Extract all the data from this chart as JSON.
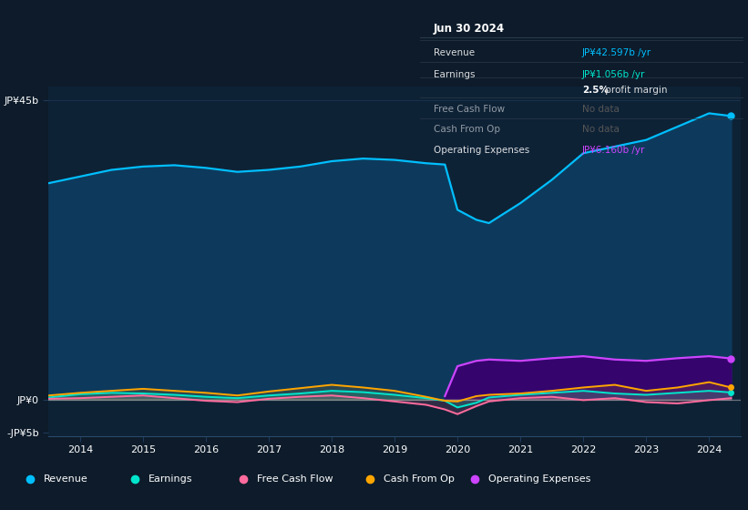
{
  "background_color": "#0d1b2a",
  "plot_bg_color": "#0e2236",
  "years": [
    2013.5,
    2014,
    2014.5,
    2015,
    2015.5,
    2016,
    2016.5,
    2017,
    2017.5,
    2018,
    2018.5,
    2019,
    2019.5,
    2019.8,
    2020,
    2020.3,
    2020.5,
    2021,
    2021.5,
    2022,
    2022.5,
    2023,
    2023.5,
    2024,
    2024.35
  ],
  "revenue": [
    32.5,
    33.5,
    34.5,
    35.0,
    35.2,
    34.8,
    34.2,
    34.5,
    35.0,
    35.8,
    36.2,
    36.0,
    35.5,
    35.3,
    28.5,
    27.0,
    26.5,
    29.5,
    33.0,
    37.0,
    38.0,
    39.0,
    41.0,
    43.0,
    42.6
  ],
  "earnings": [
    0.3,
    0.8,
    1.0,
    0.9,
    0.7,
    0.4,
    0.2,
    0.6,
    0.9,
    1.3,
    1.1,
    0.7,
    0.2,
    -0.2,
    -1.2,
    -0.5,
    0.3,
    0.7,
    1.0,
    1.3,
    0.9,
    0.7,
    1.0,
    1.3,
    1.056
  ],
  "free_cash_flow": [
    0.1,
    0.2,
    0.4,
    0.6,
    0.2,
    -0.2,
    -0.4,
    0.1,
    0.4,
    0.6,
    0.2,
    -0.3,
    -0.8,
    -1.5,
    -2.2,
    -1.0,
    -0.3,
    0.2,
    0.4,
    -0.1,
    0.2,
    -0.4,
    -0.6,
    -0.1,
    0.2
  ],
  "cash_from_op": [
    0.6,
    1.0,
    1.3,
    1.6,
    1.3,
    1.0,
    0.6,
    1.2,
    1.7,
    2.2,
    1.8,
    1.3,
    0.4,
    -0.2,
    -0.3,
    0.5,
    0.7,
    0.9,
    1.3,
    1.8,
    2.2,
    1.3,
    1.8,
    2.6,
    1.8
  ],
  "op_expenses_x": [
    2019.8,
    2020,
    2020.3,
    2020.5,
    2021,
    2021.5,
    2022,
    2022.5,
    2023,
    2023.5,
    2024,
    2024.35
  ],
  "op_expenses": [
    0.5,
    5.0,
    5.8,
    6.0,
    5.8,
    6.2,
    6.5,
    6.0,
    5.8,
    6.2,
    6.5,
    6.16
  ],
  "revenue_color": "#00bfff",
  "earnings_color": "#00e5cc",
  "free_cash_flow_color": "#ff6b9d",
  "cash_from_op_color": "#ffa500",
  "op_expenses_color": "#cc44ff",
  "revenue_fill_color": "#0d3a5c",
  "op_expenses_fill_color": "#3a006f",
  "xlim": [
    2013.5,
    2024.5
  ],
  "ylim": [
    -5.5,
    47
  ],
  "ytick_positions": [
    -5,
    0,
    45
  ],
  "ytick_labels": [
    "-JP¥5b",
    "JP¥0",
    "JP¥45b"
  ],
  "xtick_values": [
    2014,
    2015,
    2016,
    2017,
    2018,
    2019,
    2020,
    2021,
    2022,
    2023,
    2024
  ],
  "xtick_labels": [
    "2014",
    "2015",
    "2016",
    "2017",
    "2018",
    "2019",
    "2020",
    "2021",
    "2022",
    "2023",
    "2024"
  ],
  "grid_color": "#1e3a5a",
  "zero_line_color": "#aaaaaa",
  "info_box": {
    "title": "Jun 30 2024",
    "rows": [
      {
        "label": "Revenue",
        "value": "JP¥42.597b /yr",
        "value_color": "#00bfff",
        "dimmed": false,
        "bold_part": null
      },
      {
        "label": "Earnings",
        "value": "JP¥1.056b /yr",
        "value_color": "#00e5cc",
        "dimmed": false,
        "bold_part": null
      },
      {
        "label": "",
        "value": "2.5% profit margin",
        "value_color": "#dddddd",
        "dimmed": false,
        "bold_part": "2.5%"
      },
      {
        "label": "Free Cash Flow",
        "value": "No data",
        "value_color": "#555555",
        "dimmed": true,
        "bold_part": null
      },
      {
        "label": "Cash From Op",
        "value": "No data",
        "value_color": "#555555",
        "dimmed": true,
        "bold_part": null
      },
      {
        "label": "Operating Expenses",
        "value": "JP¥6.160b /yr",
        "value_color": "#cc44ff",
        "dimmed": false,
        "bold_part": null
      }
    ]
  },
  "legend_items": [
    {
      "label": "Revenue",
      "color": "#00bfff"
    },
    {
      "label": "Earnings",
      "color": "#00e5cc"
    },
    {
      "label": "Free Cash Flow",
      "color": "#ff6b9d"
    },
    {
      "label": "Cash From Op",
      "color": "#ffa500"
    },
    {
      "label": "Operating Expenses",
      "color": "#cc44ff"
    }
  ]
}
